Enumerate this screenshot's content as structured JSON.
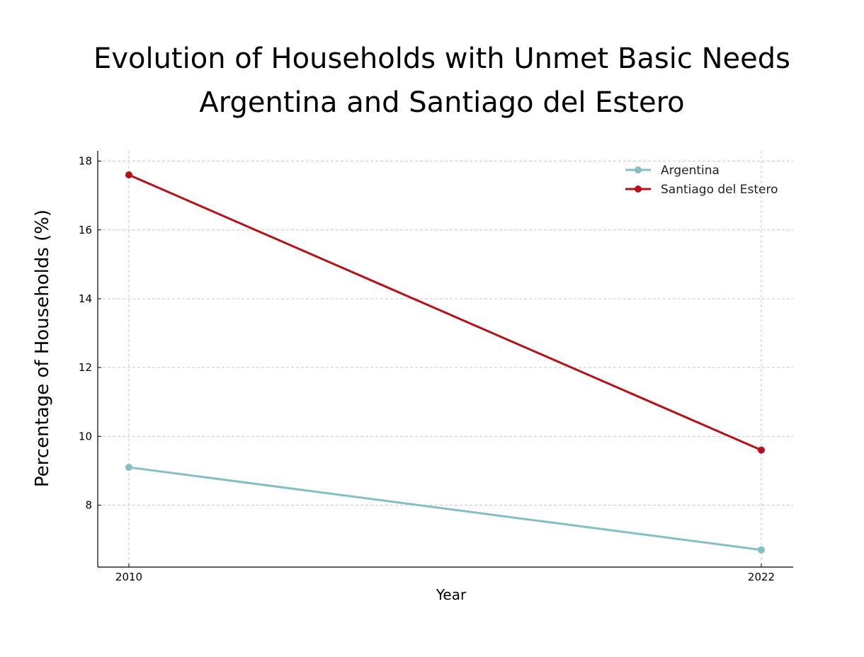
{
  "chart_data": {
    "type": "line",
    "title": "Evolution of Households with Unmet Basic Needs",
    "subtitle": "Argentina and Santiago del Estero",
    "xlabel": "Year",
    "ylabel": "Percentage of Households (%)",
    "x": [
      2010,
      2022
    ],
    "x_ticks": [
      "2010",
      "2022"
    ],
    "y_ticks": [
      8,
      10,
      12,
      14,
      16,
      18
    ],
    "ylim": [
      6.2,
      18.3
    ],
    "grid": true,
    "legend_position": "top-right",
    "series": [
      {
        "name": "Argentina",
        "values": [
          9.1,
          6.7
        ],
        "color": "#83bfc4"
      },
      {
        "name": "Santiago del Estero",
        "values": [
          17.6,
          9.6
        ],
        "color": "#b81018"
      }
    ]
  }
}
